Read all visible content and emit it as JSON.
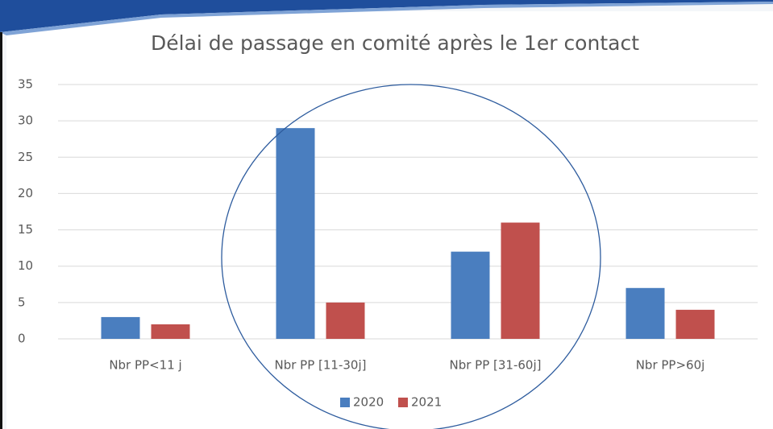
{
  "chart_data": {
    "type": "bar",
    "title": "Délai de passage en comité après le 1er contact",
    "categories": [
      "Nbr PP<11 j",
      "Nbr PP [11-30j]",
      "Nbr PP [31-60j]",
      "Nbr PP>60j"
    ],
    "series": [
      {
        "name": "2020",
        "color": "#4a7ebf",
        "values": [
          3,
          29,
          12,
          7
        ]
      },
      {
        "name": "2021",
        "color": "#c0504d",
        "values": [
          2,
          5,
          16,
          4
        ]
      }
    ],
    "ylim": [
      0,
      35
    ],
    "yticks": [
      0,
      5,
      10,
      15,
      20,
      25,
      30,
      35
    ],
    "grid": true,
    "legend": "bottom"
  }
}
